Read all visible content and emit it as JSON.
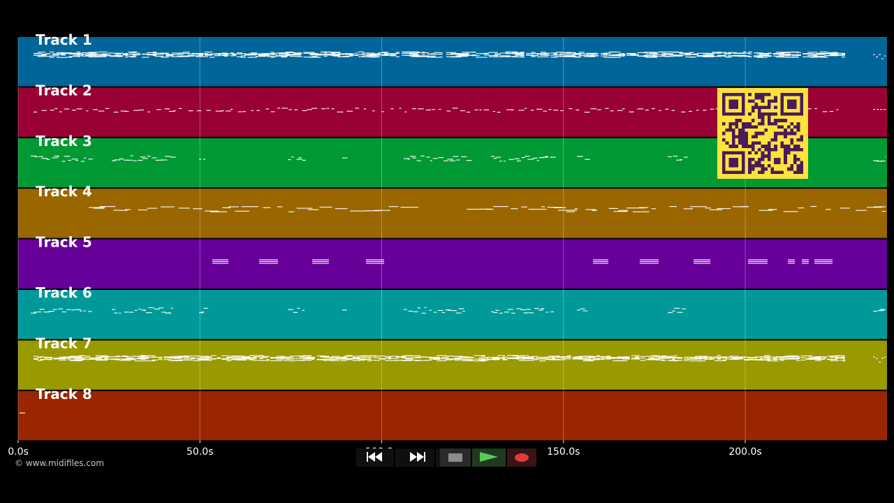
{
  "timeline": {
    "tracks": [
      {
        "name": "Track 1",
        "color": "#006699",
        "density": "dense"
      },
      {
        "name": "Track 2",
        "color": "#990033",
        "density": "dashed"
      },
      {
        "name": "Track 3",
        "color": "#009933",
        "density": "sparse"
      },
      {
        "name": "Track 4",
        "color": "#996600",
        "density": "long"
      },
      {
        "name": "Track 5",
        "color": "#660099",
        "density": "blocks"
      },
      {
        "name": "Track 6",
        "color": "#009999",
        "density": "sparse"
      },
      {
        "name": "Track 7",
        "color": "#999900",
        "density": "dense"
      },
      {
        "name": "Track 8",
        "color": "#992600",
        "density": "none"
      }
    ],
    "axis": {
      "min_seconds": 0,
      "max_seconds": 239,
      "ticks": [
        {
          "value": 0,
          "label": "0.0s"
        },
        {
          "value": 50,
          "label": "50.0s"
        },
        {
          "value": 100,
          "label": "100.0s"
        },
        {
          "value": 150,
          "label": "150.0s"
        },
        {
          "value": 200,
          "label": "200.0s"
        }
      ]
    }
  },
  "footer": {
    "copyright": "© www.midifiles.com"
  },
  "transport": {
    "rewind_icon": "rewind-icon",
    "ffwd_icon": "fast-forward-icon",
    "stop_icon": "stop-icon",
    "play_icon": "play-icon",
    "record_icon": "record-icon"
  },
  "qr_code": {
    "color_bg": "#fde33a",
    "color_fg": "#4a1a5a"
  }
}
